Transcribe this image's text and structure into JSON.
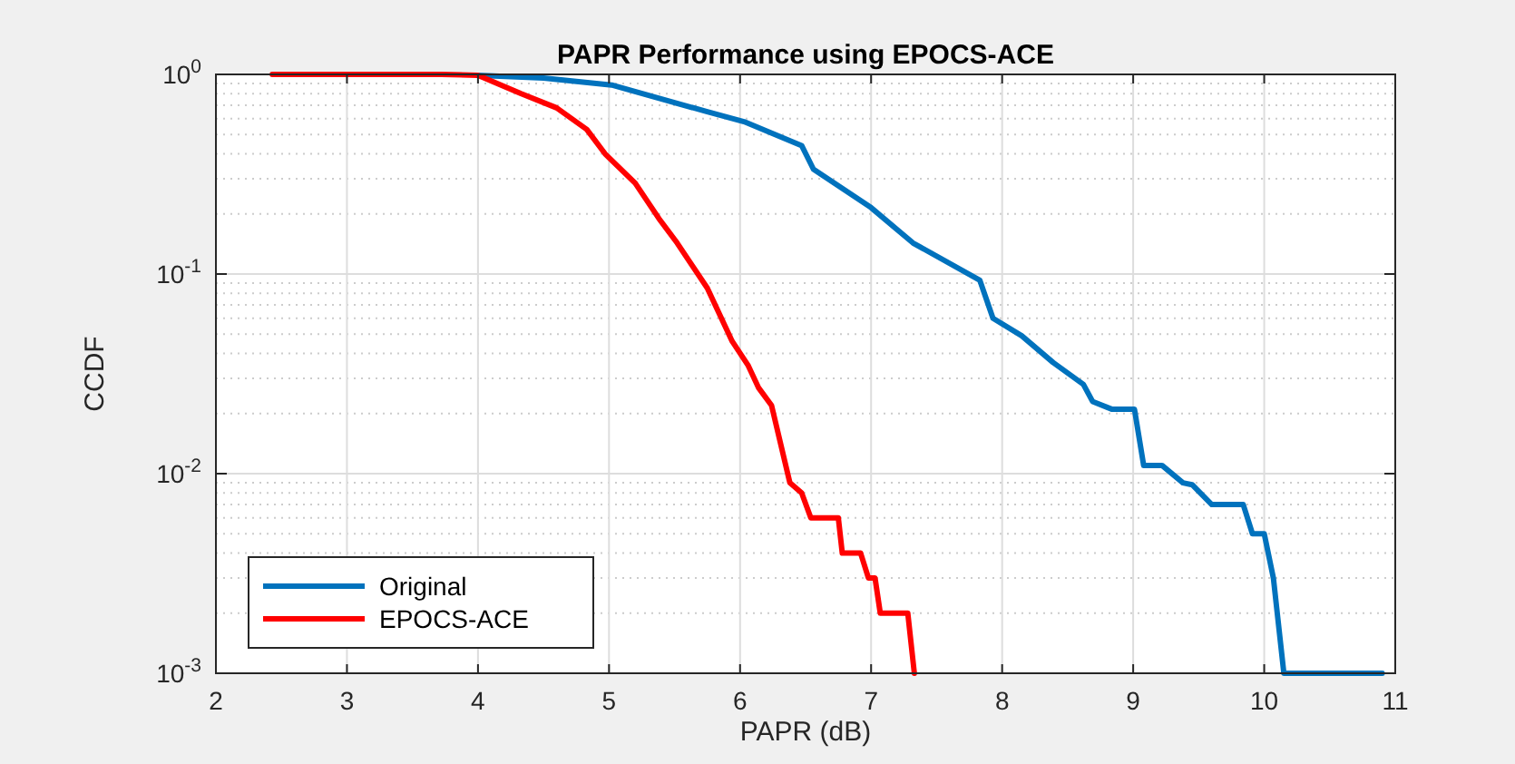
{
  "chart_data": {
    "type": "line",
    "title": "PAPR Performance using EPOCS-ACE",
    "xlabel": "PAPR (dB)",
    "ylabel": "CCDF",
    "log": "y",
    "grid": true,
    "legend": "bottom left",
    "xlim": [
      2,
      11
    ],
    "xticks": [
      2,
      3,
      4,
      5,
      6,
      7,
      8,
      9,
      10,
      11
    ],
    "ylim": [
      0.001,
      1
    ],
    "yticks": [
      {
        "value": 0.001,
        "label": "10$^{-3}$"
      },
      {
        "value": 0.01,
        "label": "10$^{-2}$"
      },
      {
        "value": 0.1,
        "label": "10$^{-1}$"
      },
      {
        "value": 1,
        "label": "10$^{0}$"
      }
    ],
    "series": [
      {
        "name": "Original",
        "color": "#0072bd",
        "x": [
          4.0,
          4.5,
          5.02,
          5.75,
          6.03,
          6.47,
          6.56,
          7.0,
          7.32,
          7.83,
          7.93,
          8.15,
          8.39,
          8.62,
          8.69,
          8.84,
          9.01,
          9.08,
          9.22,
          9.38,
          9.45,
          9.6,
          9.84,
          9.91,
          10.0,
          10.07,
          10.15,
          10.9
        ],
        "values": [
          0.99,
          0.96,
          0.885,
          0.65,
          0.58,
          0.44,
          0.335,
          0.215,
          0.143,
          0.093,
          0.06,
          0.049,
          0.036,
          0.028,
          0.023,
          0.021,
          0.021,
          0.011,
          0.011,
          0.009,
          0.0088,
          0.007,
          0.007,
          0.005,
          0.005,
          0.003,
          0.001,
          0.001
        ]
      },
      {
        "name": "EPOCS-ACE",
        "color": "#ff0000",
        "x": [
          2.43,
          3.72,
          4.0,
          4.33,
          4.6,
          4.83,
          4.97,
          5.2,
          5.38,
          5.52,
          5.75,
          5.94,
          6.06,
          6.14,
          6.24,
          6.38,
          6.47,
          6.54,
          6.75,
          6.78,
          6.92,
          6.98,
          7.03,
          7.07,
          7.28,
          7.33
        ],
        "values": [
          1,
          1,
          0.99,
          0.8,
          0.68,
          0.53,
          0.4,
          0.285,
          0.19,
          0.143,
          0.085,
          0.046,
          0.035,
          0.027,
          0.022,
          0.009,
          0.008,
          0.006,
          0.006,
          0.004,
          0.004,
          0.003,
          0.003,
          0.002,
          0.002,
          0.001
        ]
      }
    ]
  }
}
